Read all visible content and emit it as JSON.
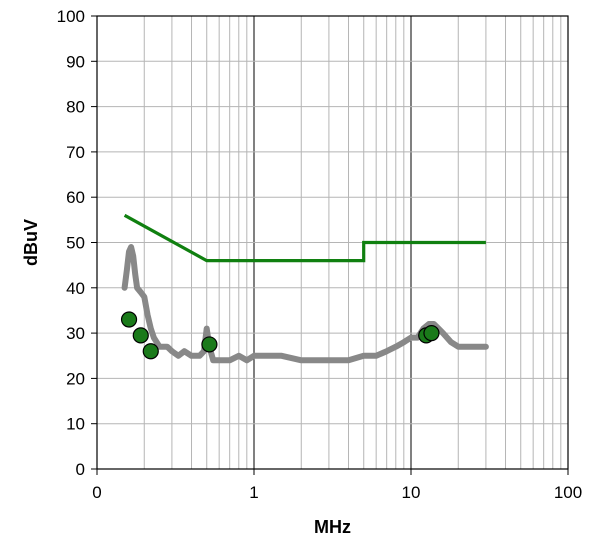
{
  "chart_data": {
    "type": "line",
    "title": "",
    "xlabel": "MHz",
    "ylabel": "dBuV",
    "x_scale": "log",
    "xlim": [
      0.1,
      100
    ],
    "ylim": [
      0,
      100
    ],
    "grid": true,
    "x_tick_labels": [
      "0",
      "1",
      "10",
      "100"
    ],
    "y_ticks": [
      0,
      10,
      20,
      30,
      40,
      50,
      60,
      70,
      80,
      90,
      100
    ],
    "colors": {
      "limit": "#108010",
      "trace": "#888888",
      "marker_fill": "#1a7a1a",
      "marker_edge": "#000000"
    },
    "series": [
      {
        "kind": "limit-line",
        "points": [
          [
            0.15,
            56
          ],
          [
            0.5,
            46
          ],
          [
            5,
            46
          ],
          [
            5,
            50
          ],
          [
            30,
            50
          ]
        ]
      },
      {
        "kind": "measured-trace",
        "points": [
          [
            0.15,
            40
          ],
          [
            0.155,
            44
          ],
          [
            0.16,
            48
          ],
          [
            0.165,
            49
          ],
          [
            0.17,
            47
          ],
          [
            0.175,
            43
          ],
          [
            0.18,
            40
          ],
          [
            0.19,
            39
          ],
          [
            0.2,
            38
          ],
          [
            0.21,
            34
          ],
          [
            0.22,
            31
          ],
          [
            0.23,
            29
          ],
          [
            0.25,
            27
          ],
          [
            0.28,
            27
          ],
          [
            0.3,
            26
          ],
          [
            0.33,
            25
          ],
          [
            0.36,
            26
          ],
          [
            0.4,
            25
          ],
          [
            0.45,
            25
          ],
          [
            0.48,
            26
          ],
          [
            0.5,
            31
          ],
          [
            0.52,
            27
          ],
          [
            0.55,
            24
          ],
          [
            0.6,
            24
          ],
          [
            0.7,
            24
          ],
          [
            0.8,
            25
          ],
          [
            0.9,
            24
          ],
          [
            1,
            25
          ],
          [
            1.2,
            25
          ],
          [
            1.5,
            25
          ],
          [
            2,
            24
          ],
          [
            2.5,
            24
          ],
          [
            3,
            24
          ],
          [
            4,
            24
          ],
          [
            5,
            25
          ],
          [
            6,
            25
          ],
          [
            7,
            26
          ],
          [
            8,
            27
          ],
          [
            9,
            28
          ],
          [
            10,
            29
          ],
          [
            11,
            29
          ],
          [
            12,
            31
          ],
          [
            13,
            32
          ],
          [
            14,
            32
          ],
          [
            15,
            31
          ],
          [
            16,
            30
          ],
          [
            18,
            28
          ],
          [
            20,
            27
          ],
          [
            22,
            27
          ],
          [
            25,
            27
          ],
          [
            28,
            27
          ],
          [
            30,
            27
          ]
        ]
      },
      {
        "kind": "quasi-peak-markers",
        "points": [
          [
            0.16,
            33
          ],
          [
            0.19,
            29.5
          ],
          [
            0.22,
            26
          ],
          [
            0.52,
            27.5
          ],
          [
            12.5,
            29.5
          ],
          [
            13.5,
            30
          ]
        ]
      }
    ]
  }
}
